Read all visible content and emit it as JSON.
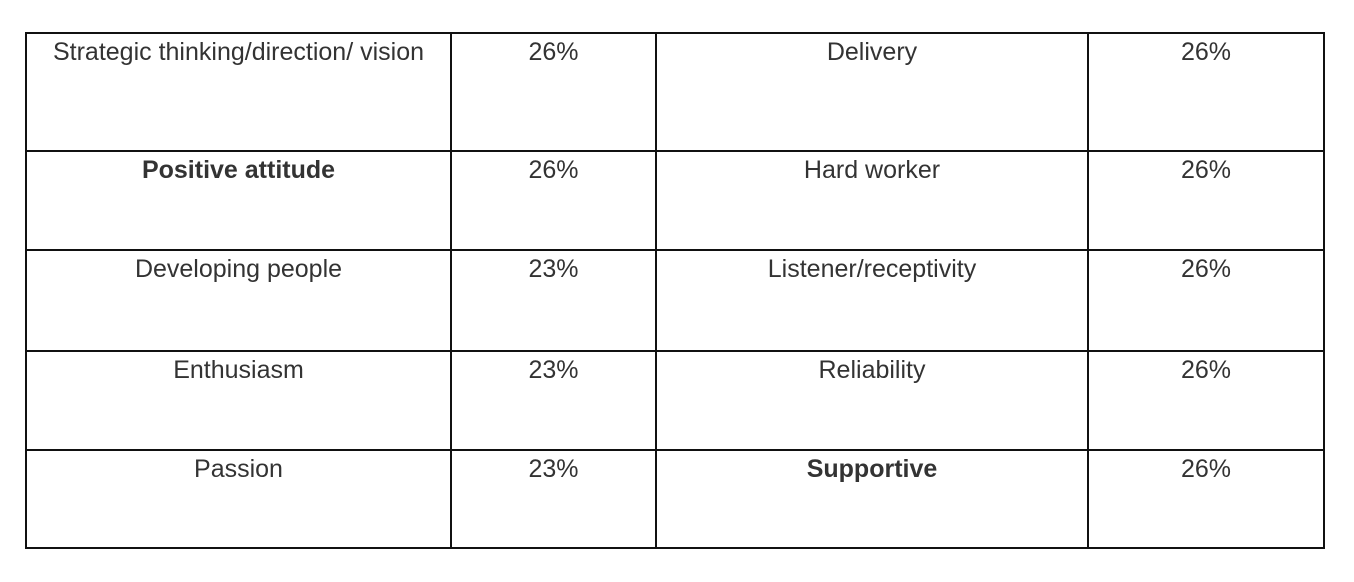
{
  "table": {
    "rows": [
      {
        "trait_left": "Strategic thinking/direction/ vision",
        "pct_left": "26%",
        "trait_right": "Delivery",
        "pct_right": "26%"
      },
      {
        "trait_left": "Positive attitude",
        "pct_left": "26%",
        "trait_right": "Hard worker",
        "pct_right": "26%"
      },
      {
        "trait_left": "Developing people",
        "pct_left": "23%",
        "trait_right": "Listener/receptivity",
        "pct_right": "26%"
      },
      {
        "trait_left": "Enthusiasm",
        "pct_left": "23%",
        "trait_right": "Reliability",
        "pct_right": "26%"
      },
      {
        "trait_left": "Passion",
        "pct_left": "23%",
        "trait_right": "Supportive",
        "pct_right": "26%"
      }
    ]
  }
}
